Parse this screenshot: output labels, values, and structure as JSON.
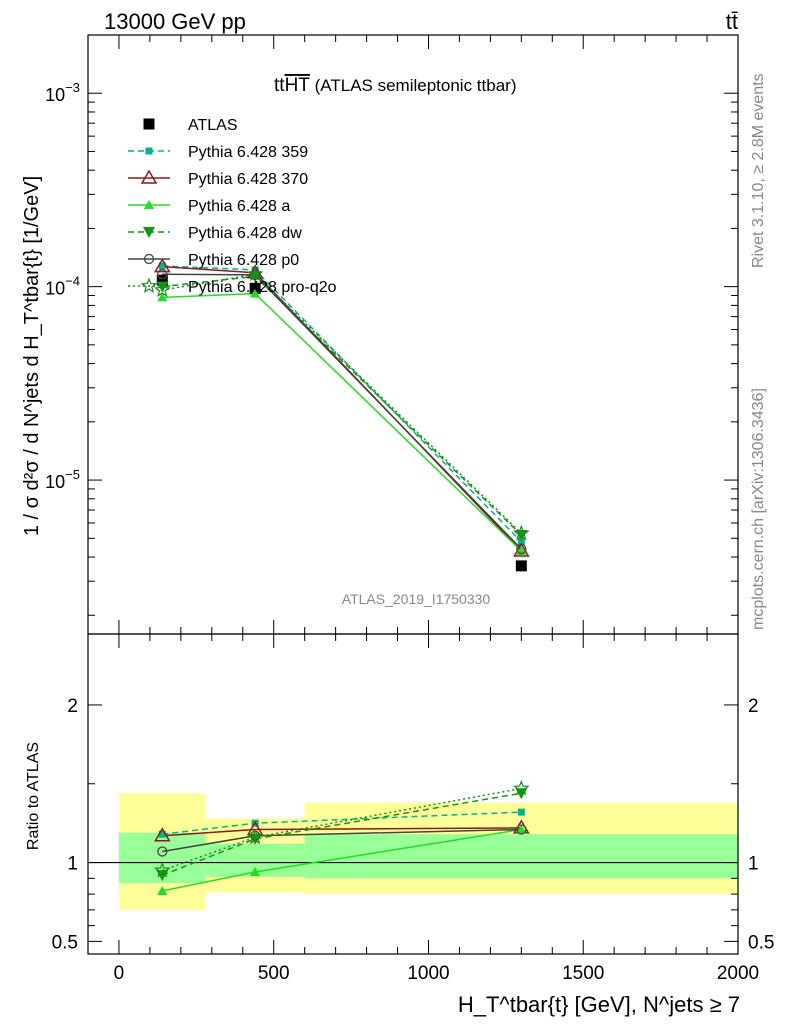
{
  "header": {
    "left": "13000 GeV pp",
    "right": "tt̄"
  },
  "side_labels": {
    "rivet": "Rivet 3.1.10, ≥ 2.8M events",
    "mcplots": "mcplots.cern.ch [arXiv:1306.3436]"
  },
  "chart_data": [
    {
      "type": "line",
      "panel": "main",
      "title_main": "tt",
      "title_over": "HT",
      "title_rest": " (ATLAS semileptonic ttbar)",
      "watermark": "ATLAS_2019_I1750330",
      "yscale": "log",
      "ylim": [
        1.6e-06,
        0.002
      ],
      "xlim": [
        -100,
        2000
      ],
      "ylabel": "1 / σ d²σ / d N^jets d H_T^tbar{t} [1/GeV]",
      "yticks": [
        {
          "v": 0.001,
          "base": "10",
          "exp": "−3"
        },
        {
          "v": 0.0001,
          "base": "10",
          "exp": "−4"
        },
        {
          "v": 1e-05,
          "base": "10",
          "exp": "−5"
        }
      ],
      "legend_position": "top-left",
      "series": [
        {
          "name": "ATLAS",
          "color": "#000000",
          "marker": "square",
          "line": "none",
          "x": [
            140,
            440,
            1300
          ],
          "y": [
            0.000108,
            9.8e-05,
            3.6e-06
          ],
          "band_edges": [
            0,
            280,
            600,
            2000
          ]
        },
        {
          "name": "Pythia 6.428 359",
          "color": "#00b38f",
          "marker": "small-square",
          "line": "dashed",
          "x": [
            140,
            440,
            1300
          ],
          "y": [
            0.000128,
            0.000122,
            4.8e-06
          ]
        },
        {
          "name": "Pythia 6.428 370",
          "color": "#8b1a1a",
          "marker": "open-triangle",
          "line": "solid",
          "x": [
            140,
            440,
            1300
          ],
          "y": [
            0.000127,
            0.000118,
            4.3e-06
          ]
        },
        {
          "name": "Pythia 6.428 a",
          "color": "#22dd22",
          "marker": "triangle",
          "line": "solid",
          "x": [
            140,
            440,
            1300
          ],
          "y": [
            8.8e-05,
            9.2e-05,
            4.3e-06
          ]
        },
        {
          "name": "Pythia 6.428 dw",
          "color": "#119911",
          "marker": "triangle-down",
          "line": "dashed",
          "x": [
            140,
            440,
            1300
          ],
          "y": [
            0.0001,
            0.000113,
            5.2e-06
          ]
        },
        {
          "name": "Pythia 6.428 p0",
          "color": "#444444",
          "marker": "open-circle",
          "line": "solid",
          "x": [
            140,
            440,
            1300
          ],
          "y": [
            0.000116,
            0.000115,
            4.4e-06
          ]
        },
        {
          "name": "Pythia 6.428 pro-q2o",
          "color": "#1a8a1a",
          "marker": "star",
          "line": "dotted",
          "x": [
            140,
            440,
            1300
          ],
          "y": [
            9.6e-05,
            0.000116,
            5.3e-06
          ]
        }
      ]
    },
    {
      "type": "line",
      "panel": "ratio",
      "ylabel": "Ratio to ATLAS",
      "ylim": [
        0.42,
        2.45
      ],
      "yticks": [
        {
          "v": 0.5,
          "t": "0.5"
        },
        {
          "v": 1,
          "t": "1"
        },
        {
          "v": 2,
          "t": "2"
        }
      ],
      "xlim": [
        -100,
        2000
      ],
      "xticks": [
        {
          "v": 0,
          "t": "0"
        },
        {
          "v": 500,
          "t": "500"
        },
        {
          "v": 1000,
          "t": "1000"
        },
        {
          "v": 1500,
          "t": "1500"
        },
        {
          "v": 2000,
          "t": "2000"
        }
      ],
      "xlabel": "H_T^tbar{t} [GeV], N^jets ≥ 7",
      "bands": [
        {
          "x0": 0,
          "x1": 280,
          "stat": [
            0.87,
            1.19
          ],
          "total": [
            0.7,
            1.44
          ]
        },
        {
          "x0": 280,
          "x1": 600,
          "stat": [
            0.91,
            1.12
          ],
          "total": [
            0.81,
            1.28
          ]
        },
        {
          "x0": 600,
          "x1": 2000,
          "stat": [
            0.9,
            1.18
          ],
          "total": [
            0.8,
            1.38
          ]
        }
      ],
      "series": [
        {
          "name": "Pythia 6.428 359",
          "color": "#00b38f",
          "line": "dashed",
          "marker": "small-square",
          "x": [
            140,
            440,
            1300
          ],
          "y": [
            1.18,
            1.25,
            1.32
          ]
        },
        {
          "name": "Pythia 6.428 370",
          "color": "#8b1a1a",
          "line": "solid",
          "marker": "open-triangle",
          "x": [
            140,
            440,
            1300
          ],
          "y": [
            1.17,
            1.21,
            1.22
          ]
        },
        {
          "name": "Pythia 6.428 a",
          "color": "#22dd22",
          "line": "solid",
          "marker": "triangle",
          "x": [
            140,
            440,
            1300
          ],
          "y": [
            0.82,
            0.94,
            1.21
          ]
        },
        {
          "name": "Pythia 6.428 dw",
          "color": "#119911",
          "line": "dashed",
          "marker": "triangle-down",
          "x": [
            140,
            440,
            1300
          ],
          "y": [
            0.92,
            1.15,
            1.44
          ]
        },
        {
          "name": "Pythia 6.428 p0",
          "color": "#444444",
          "line": "solid",
          "marker": "open-circle",
          "x": [
            140,
            440,
            1300
          ],
          "y": [
            1.07,
            1.17,
            1.21
          ]
        },
        {
          "name": "Pythia 6.428 pro-q2o",
          "color": "#1a8a1a",
          "line": "dotted",
          "marker": "star",
          "x": [
            140,
            440,
            1300
          ],
          "y": [
            0.95,
            1.16,
            1.47
          ]
        }
      ]
    }
  ]
}
